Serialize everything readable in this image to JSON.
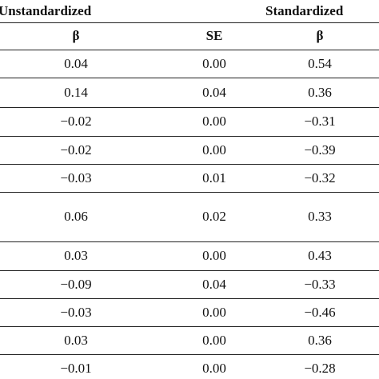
{
  "header": {
    "top": [
      "Unstandardized",
      "Standardized"
    ],
    "sub": [
      "β",
      "SE",
      "β"
    ]
  },
  "table": {
    "rows": [
      [
        "0.04",
        "0.00",
        "0.54"
      ],
      [
        "0.14",
        "0.04",
        "0.36"
      ],
      [
        "−0.02",
        "0.00",
        "−0.31"
      ],
      [
        "−0.02",
        "0.00",
        "−0.39"
      ],
      [
        "−0.03",
        "0.01",
        "−0.32"
      ],
      [
        "0.06",
        "0.02",
        "0.33"
      ],
      [
        "0.03",
        "0.00",
        "0.43"
      ],
      [
        "−0.09",
        "0.04",
        "−0.33"
      ],
      [
        "−0.03",
        "0.00",
        "−0.46"
      ],
      [
        "0.03",
        "0.00",
        "0.36"
      ],
      [
        "−0.01",
        "0.00",
        "−0.28"
      ]
    ]
  }
}
